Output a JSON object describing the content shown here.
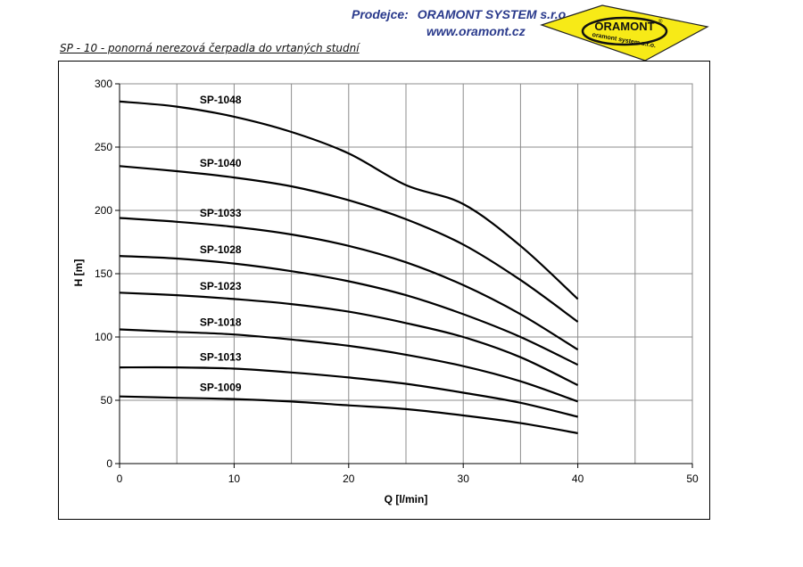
{
  "header": {
    "dealer_label": "Prodejce:",
    "dealer_name": "ORAMONT SYSTEM s.r.o.",
    "website": "www.oramont.cz",
    "text_color": "#2a3a8c"
  },
  "logo": {
    "brand": "ORAMONT",
    "registered_mark": "®",
    "tagline": "oramont system s.r.o.",
    "fill_color": "#f7ea17"
  },
  "subtitle": "SP - 10 - ponorná nerezová čerpadla do vrtaných studní",
  "chart_data": {
    "type": "line",
    "title": "",
    "xlabel": "Q [l/min]",
    "ylabel": "H [m]",
    "xlim": [
      0,
      50
    ],
    "ylim": [
      0,
      300
    ],
    "xticks": [
      0,
      10,
      20,
      30,
      40,
      50
    ],
    "yticks": [
      0,
      50,
      100,
      150,
      200,
      250,
      300
    ],
    "grid": true,
    "legend": "inline labels",
    "line_color": "#000000",
    "x": [
      0,
      5,
      10,
      15,
      20,
      25,
      30,
      35,
      40
    ],
    "series": [
      {
        "name": "SP-1048",
        "values": [
          286,
          282,
          274,
          262,
          245,
          220,
          205,
          172,
          130
        ]
      },
      {
        "name": "SP-1040",
        "values": [
          235,
          231,
          226,
          219,
          208,
          193,
          173,
          145,
          112
        ]
      },
      {
        "name": "SP-1033",
        "values": [
          194,
          191,
          187,
          181,
          172,
          159,
          141,
          118,
          90
        ]
      },
      {
        "name": "SP-1028",
        "values": [
          164,
          162,
          158,
          152,
          144,
          133,
          118,
          100,
          78
        ]
      },
      {
        "name": "SP-1023",
        "values": [
          135,
          133,
          130,
          126,
          120,
          111,
          100,
          84,
          62
        ]
      },
      {
        "name": "SP-1018",
        "values": [
          106,
          104,
          102,
          98,
          93,
          86,
          77,
          65,
          49
        ]
      },
      {
        "name": "SP-1013",
        "values": [
          76,
          76,
          75,
          72,
          68,
          63,
          56,
          48,
          37
        ]
      },
      {
        "name": "SP-1009",
        "values": [
          53,
          52,
          51,
          49,
          46,
          43,
          38,
          32,
          24
        ]
      }
    ]
  }
}
